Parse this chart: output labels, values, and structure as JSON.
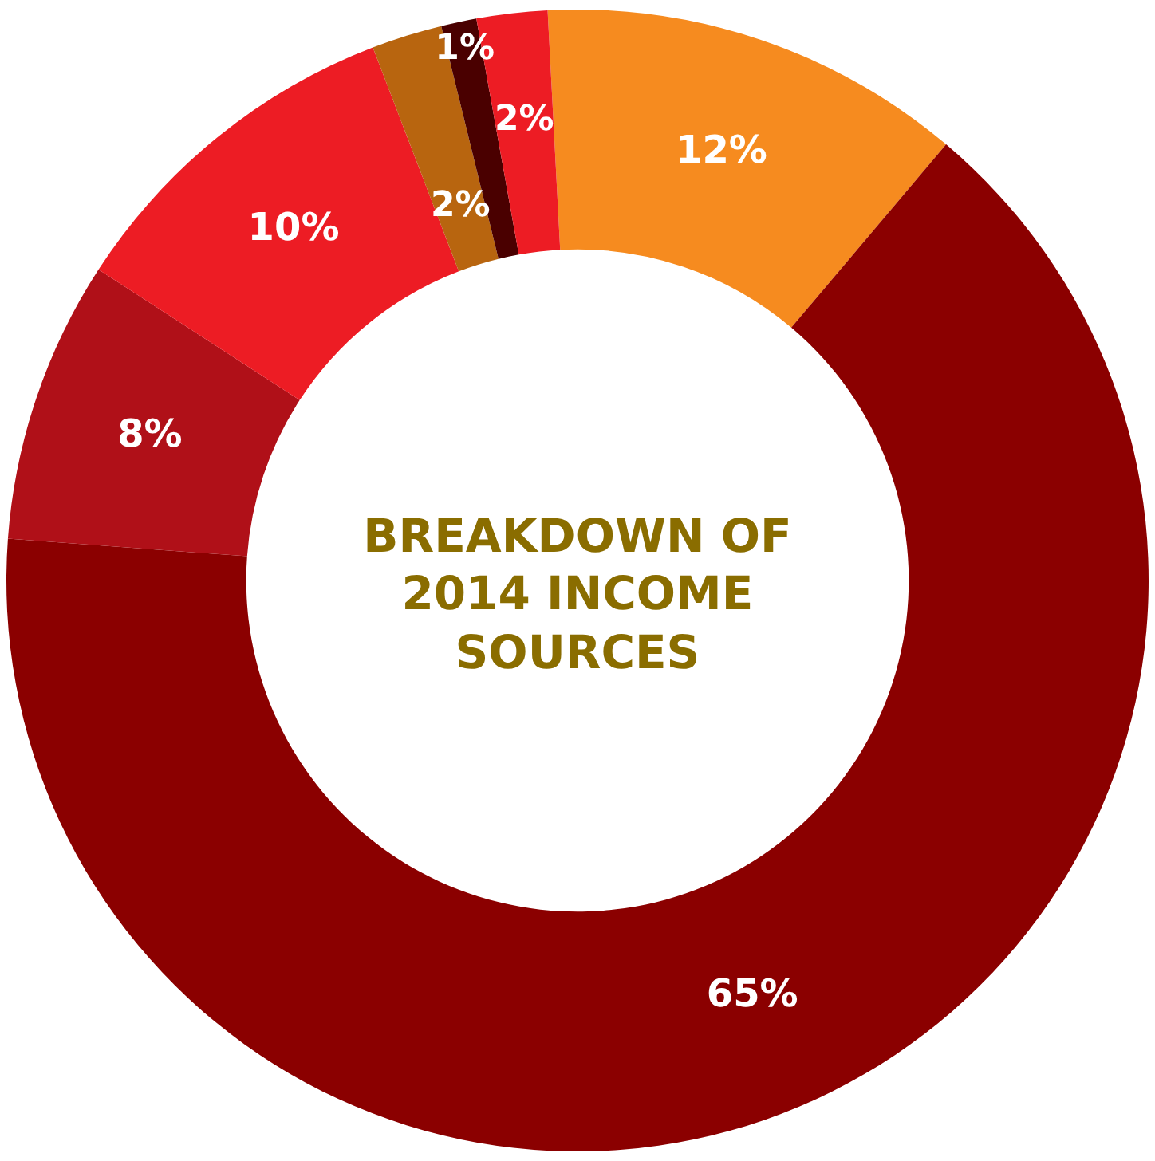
{
  "chart_data": {
    "type": "donut",
    "title": "BREAKDOWN OF 2014 INCOME SOURCES",
    "categories": [
      null,
      null,
      null,
      null,
      null,
      null,
      null
    ],
    "values": [
      12,
      65,
      8,
      10,
      2,
      1,
      2
    ],
    "colors": [
      "#f68b1f",
      "#8b0000",
      "#b01018",
      "#ed1c24",
      "#b8650f",
      "#4a0000",
      "#ed1c24"
    ],
    "value_labels": [
      "12%",
      "65%",
      "8%",
      "10%",
      "2%",
      "1%",
      "2%"
    ],
    "legend": false
  }
}
